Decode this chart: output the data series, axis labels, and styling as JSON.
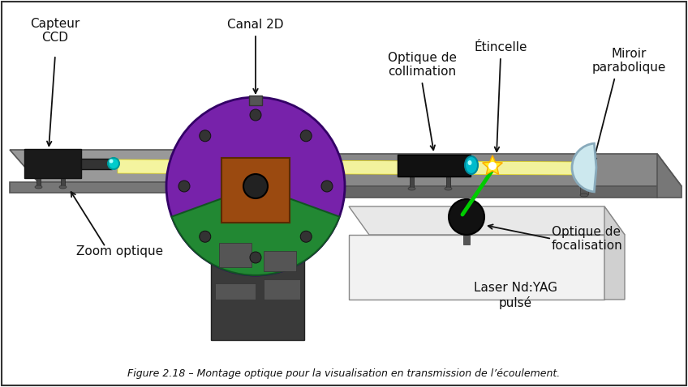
{
  "title": "Figure 2.18 – Montage optique pour la visualisation en transmission de l’écoulement.",
  "background_color": "#ffffff",
  "border_color": "#333333",
  "labels": {
    "capteur_ccd": "Capteur\nCCD",
    "zoom_optique": "Zoom optique",
    "canal_2d": "Canal 2D",
    "optique_collimation": "Optique de\ncollimation",
    "etincelle": "Étincelle",
    "miroir_parabolique": "Miroir\nparabolique",
    "optique_focalisation": "Optique de\nfocalisation",
    "laser": "Laser Nd:YAG\npulsé"
  },
  "figsize": [
    8.48,
    4.78
  ],
  "dpi": 100
}
